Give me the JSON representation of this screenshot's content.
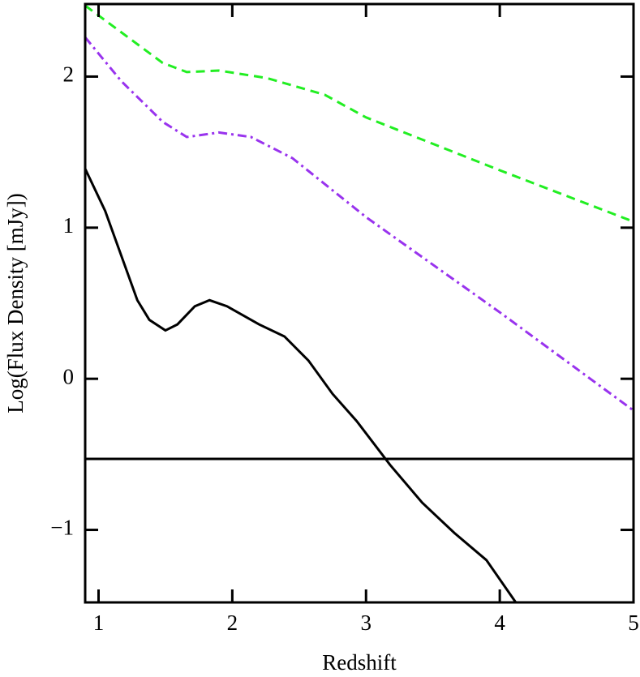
{
  "chart_data": {
    "type": "line",
    "xlabel": "Redshift",
    "ylabel": "Log(Flux Density [mJy])",
    "xlim": [
      0.9,
      5
    ],
    "ylim": [
      -1.48,
      2.48
    ],
    "xticks": [
      1,
      2,
      3,
      4,
      5
    ],
    "yticks": [
      {
        "value": -1,
        "label": "−1"
      },
      0,
      1,
      2
    ],
    "hline": {
      "value": -0.53,
      "color": "#000000"
    },
    "series": [
      {
        "color": "#22ee22",
        "style": "dashed",
        "x": [
          0.9,
          1.48,
          1.66,
          1.9,
          2.26,
          2.69,
          3,
          4,
          5
        ],
        "values": [
          2.47,
          2.09,
          2.03,
          2.04,
          1.99,
          1.88,
          1.73,
          1.38,
          1.04
        ]
      },
      {
        "color": "#9933ee",
        "style": "dashdot",
        "x": [
          0.9,
          1.17,
          1.48,
          1.66,
          1.9,
          2.14,
          2.45,
          3,
          4,
          5
        ],
        "values": [
          2.26,
          1.97,
          1.7,
          1.6,
          1.63,
          1.6,
          1.46,
          1.07,
          0.44,
          -0.21
        ]
      },
      {
        "color": "#000000",
        "style": "solid",
        "x": [
          0.9,
          1.05,
          1.29,
          1.38,
          1.5,
          1.59,
          1.72,
          1.83,
          1.96,
          2.2,
          2.39,
          2.57,
          2.75,
          2.93,
          3.18,
          3.42,
          3.66,
          3.9,
          4.12
        ],
        "values": [
          1.39,
          1.11,
          0.52,
          0.39,
          0.32,
          0.36,
          0.48,
          0.52,
          0.48,
          0.36,
          0.28,
          0.12,
          -0.1,
          -0.28,
          -0.57,
          -0.82,
          -1.02,
          -1.2,
          -1.48
        ]
      }
    ]
  }
}
